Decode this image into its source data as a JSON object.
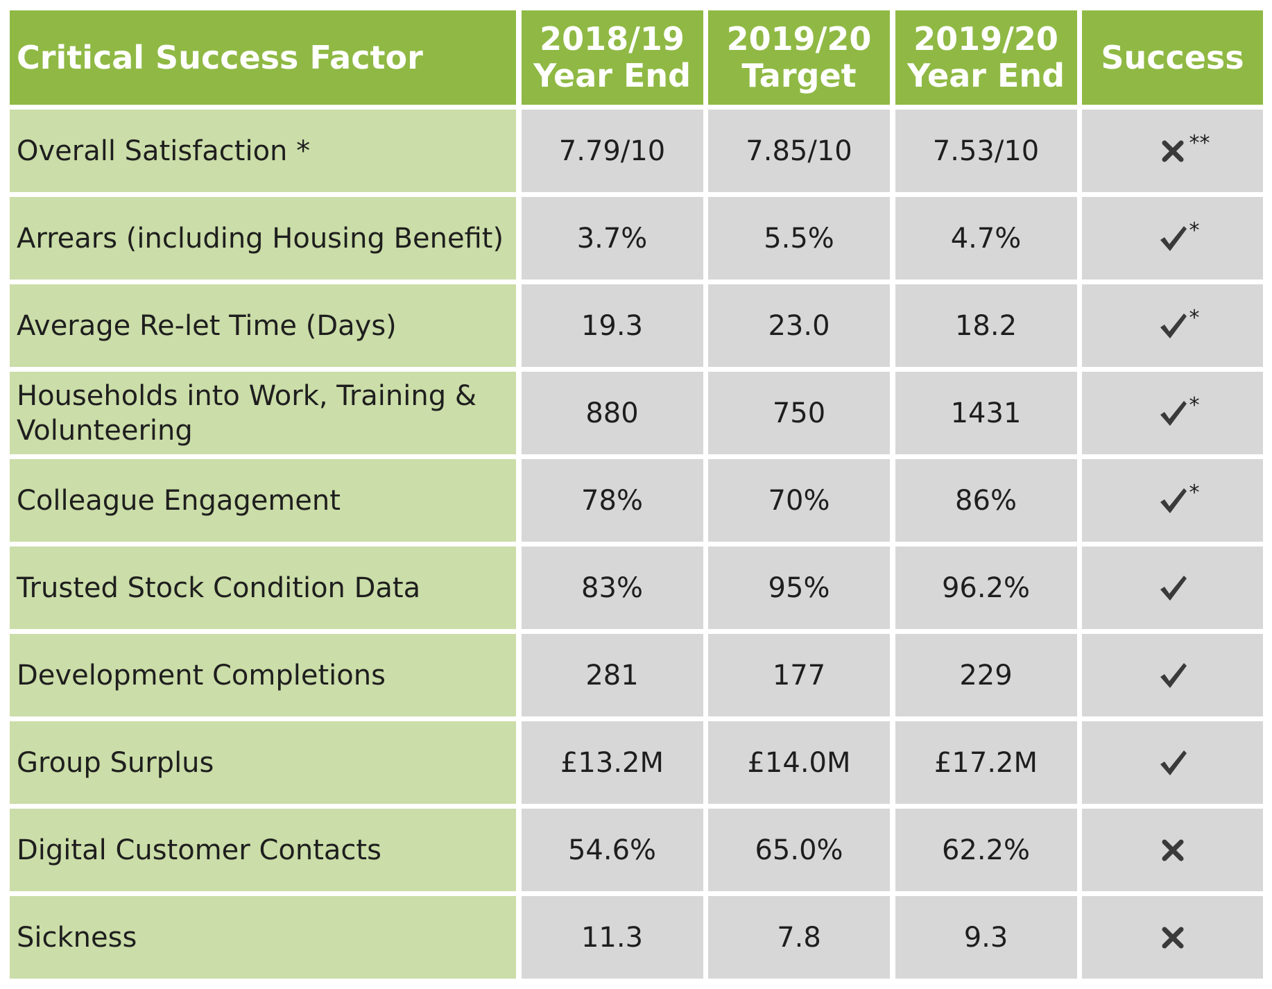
{
  "table": {
    "headers": [
      {
        "lines": [
          "Critical Success Factor"
        ]
      },
      {
        "lines": [
          "2018/19",
          "Year End"
        ]
      },
      {
        "lines": [
          "2019/20",
          "Target"
        ]
      },
      {
        "lines": [
          "2019/20",
          "Year End"
        ]
      },
      {
        "lines": [
          "Success"
        ]
      }
    ],
    "rows": [
      {
        "factor": "Overall Satisfaction *",
        "y1819": "7.79/10",
        "target": "7.85/10",
        "y1920": "7.53/10",
        "success": "cross",
        "note": "**"
      },
      {
        "factor": "Arrears (including Housing Benefit)",
        "y1819": "3.7%",
        "target": "5.5%",
        "y1920": "4.7%",
        "success": "check",
        "note": "*"
      },
      {
        "factor": "Average Re-let Time (Days)",
        "y1819": "19.3",
        "target": "23.0",
        "y1920": "18.2",
        "success": "check",
        "note": "*"
      },
      {
        "factor": "Households into Work, Training & Volunteering",
        "y1819": "880",
        "target": "750",
        "y1920": "1431",
        "success": "check",
        "note": "*"
      },
      {
        "factor": "Colleague Engagement",
        "y1819": "78%",
        "target": "70%",
        "y1920": "86%",
        "success": "check",
        "note": "*"
      },
      {
        "factor": "Trusted Stock Condition Data",
        "y1819": "83%",
        "target": "95%",
        "y1920": "96.2%",
        "success": "check",
        "note": ""
      },
      {
        "factor": "Development Completions",
        "y1819": "281",
        "target": "177",
        "y1920": "229",
        "success": "check",
        "note": ""
      },
      {
        "factor": "Group Surplus",
        "y1819": "£13.2M",
        "target": "£14.0M",
        "y1920": "£17.2M",
        "success": "check",
        "note": ""
      },
      {
        "factor": "Digital Customer Contacts",
        "y1819": "54.6%",
        "target": "65.0%",
        "y1920": "62.2%",
        "success": "cross",
        "note": ""
      },
      {
        "factor": "Sickness",
        "y1819": "11.3",
        "target": "7.8",
        "y1920": "9.3",
        "success": "cross",
        "note": ""
      }
    ]
  },
  "icons": {
    "check": "check-icon",
    "cross": "cross-icon"
  },
  "colors": {
    "header_bg": "#8fb944",
    "factor_bg": "#cbdda8",
    "value_bg": "#d7d7d7",
    "mark_color": "#3a3a3a"
  }
}
